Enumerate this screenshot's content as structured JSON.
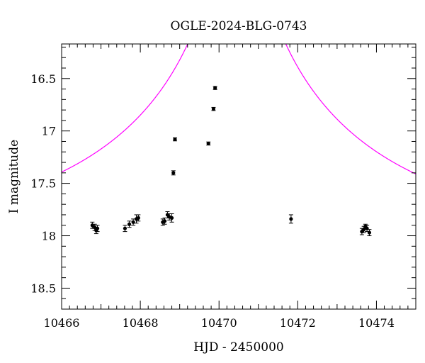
{
  "chart_data": {
    "type": "scatter",
    "title": "OGLE-2024-BLG-0743",
    "xlabel": "HJD - 2450000",
    "ylabel": "I magnitude",
    "xlim": [
      10466.0,
      10475.0
    ],
    "ylim": [
      18.7,
      16.17
    ],
    "y_inverted": true,
    "x_ticks": [
      10466,
      10468,
      10470,
      10472,
      10474
    ],
    "y_ticks": [
      16.5,
      17,
      17.5,
      18,
      18.5
    ],
    "x_tick_labels": [
      "10466",
      "10468",
      "10470",
      "10472",
      "10474"
    ],
    "y_tick_labels": [
      "16.5",
      "17",
      "17.5",
      "18",
      "18.5"
    ],
    "grid": false,
    "series": [
      {
        "kind": "points_with_errorbars",
        "color": "#000000",
        "points": [
          {
            "x": 10466.78,
            "y": 17.9,
            "err": 0.03
          },
          {
            "x": 10466.84,
            "y": 17.92,
            "err": 0.03
          },
          {
            "x": 10466.88,
            "y": 17.95,
            "err": 0.03
          },
          {
            "x": 10466.91,
            "y": 17.93,
            "err": 0.03
          },
          {
            "x": 10467.61,
            "y": 17.93,
            "err": 0.03
          },
          {
            "x": 10467.72,
            "y": 17.89,
            "err": 0.03
          },
          {
            "x": 10467.82,
            "y": 17.87,
            "err": 0.03
          },
          {
            "x": 10467.9,
            "y": 17.84,
            "err": 0.04
          },
          {
            "x": 10467.95,
            "y": 17.83,
            "err": 0.03
          },
          {
            "x": 10468.57,
            "y": 17.87,
            "err": 0.03
          },
          {
            "x": 10468.62,
            "y": 17.86,
            "err": 0.03
          },
          {
            "x": 10468.69,
            "y": 17.8,
            "err": 0.03
          },
          {
            "x": 10468.74,
            "y": 17.82,
            "err": 0.03
          },
          {
            "x": 10468.8,
            "y": 17.83,
            "err": 0.04
          },
          {
            "x": 10468.84,
            "y": 17.4,
            "err": 0.02
          },
          {
            "x": 10468.88,
            "y": 17.08,
            "err": 0.015
          },
          {
            "x": 10469.73,
            "y": 17.12,
            "err": 0.015
          },
          {
            "x": 10469.86,
            "y": 16.79,
            "err": 0.015
          },
          {
            "x": 10469.9,
            "y": 16.59,
            "err": 0.015
          },
          {
            "x": 10471.83,
            "y": 17.84,
            "err": 0.04
          },
          {
            "x": 10473.63,
            "y": 17.96,
            "err": 0.03
          },
          {
            "x": 10473.68,
            "y": 17.94,
            "err": 0.03
          },
          {
            "x": 10473.72,
            "y": 17.91,
            "err": 0.02
          },
          {
            "x": 10473.76,
            "y": 17.93,
            "err": 0.03
          },
          {
            "x": 10473.82,
            "y": 17.97,
            "err": 0.03
          }
        ]
      },
      {
        "kind": "model_curve",
        "color": "#ff00ff",
        "model": {
          "t0": 10470.45,
          "tE": 7.0,
          "u0": 0.04,
          "baseline_mag": 18.03
        }
      }
    ]
  }
}
